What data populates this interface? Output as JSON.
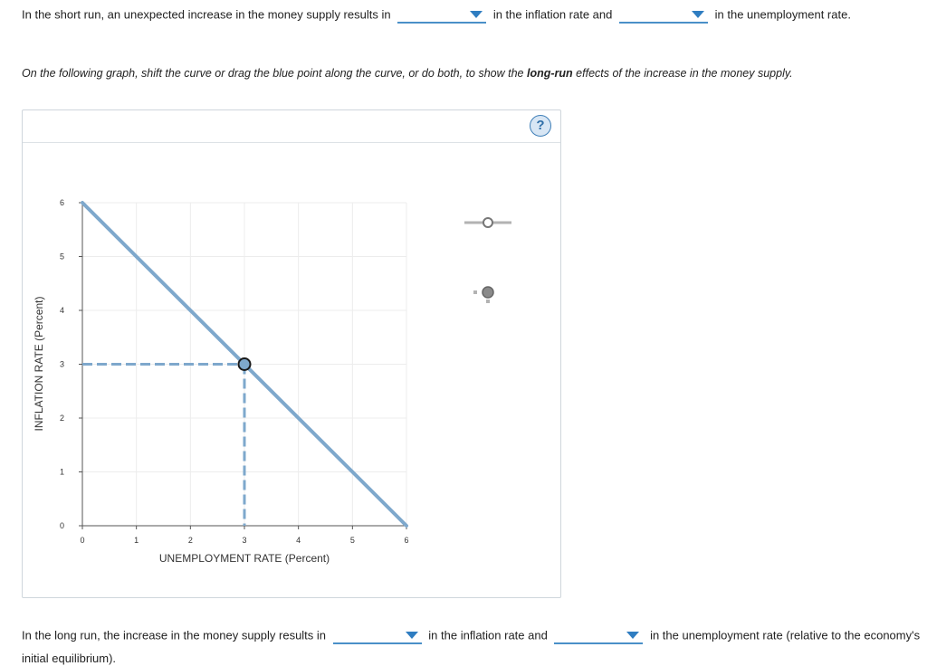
{
  "question1": {
    "prefix": "In the short run, an unexpected increase in the money supply results in",
    "middle": "in the inflation rate and",
    "suffix": "in the unemployment rate."
  },
  "instruction": {
    "before": "On the following graph, shift the curve or drag the blue point along the curve, or do both, to show the",
    "bold": "long-run",
    "after": "effects of the increase in the money supply."
  },
  "help_label": "?",
  "chart_data": {
    "type": "line",
    "xlabel": "UNEMPLOYMENT RATE (Percent)",
    "ylabel": "INFLATION RATE (Percent)",
    "xlim": [
      0,
      6
    ],
    "ylim": [
      0,
      6
    ],
    "xticks": [
      "0",
      "1",
      "2",
      "3",
      "4",
      "5",
      "6"
    ],
    "yticks": [
      "0",
      "1",
      "2",
      "3",
      "4",
      "5",
      "6"
    ],
    "grid": true,
    "series": [
      {
        "x": [
          0,
          6
        ],
        "y": [
          6,
          0
        ],
        "color": "#7ea8cc"
      }
    ],
    "point": {
      "x": 3,
      "y": 3,
      "color": "#7ea8cc"
    },
    "palette": {
      "curve": "#a9a9a9",
      "point": "#8a8a8a"
    }
  },
  "question2": {
    "prefix": "In the long run, the increase in the money supply results in",
    "middle": "in the inflation rate and",
    "suffix": "in the unemployment rate (relative to the economy's",
    "line2": "initial equilibrium)."
  }
}
